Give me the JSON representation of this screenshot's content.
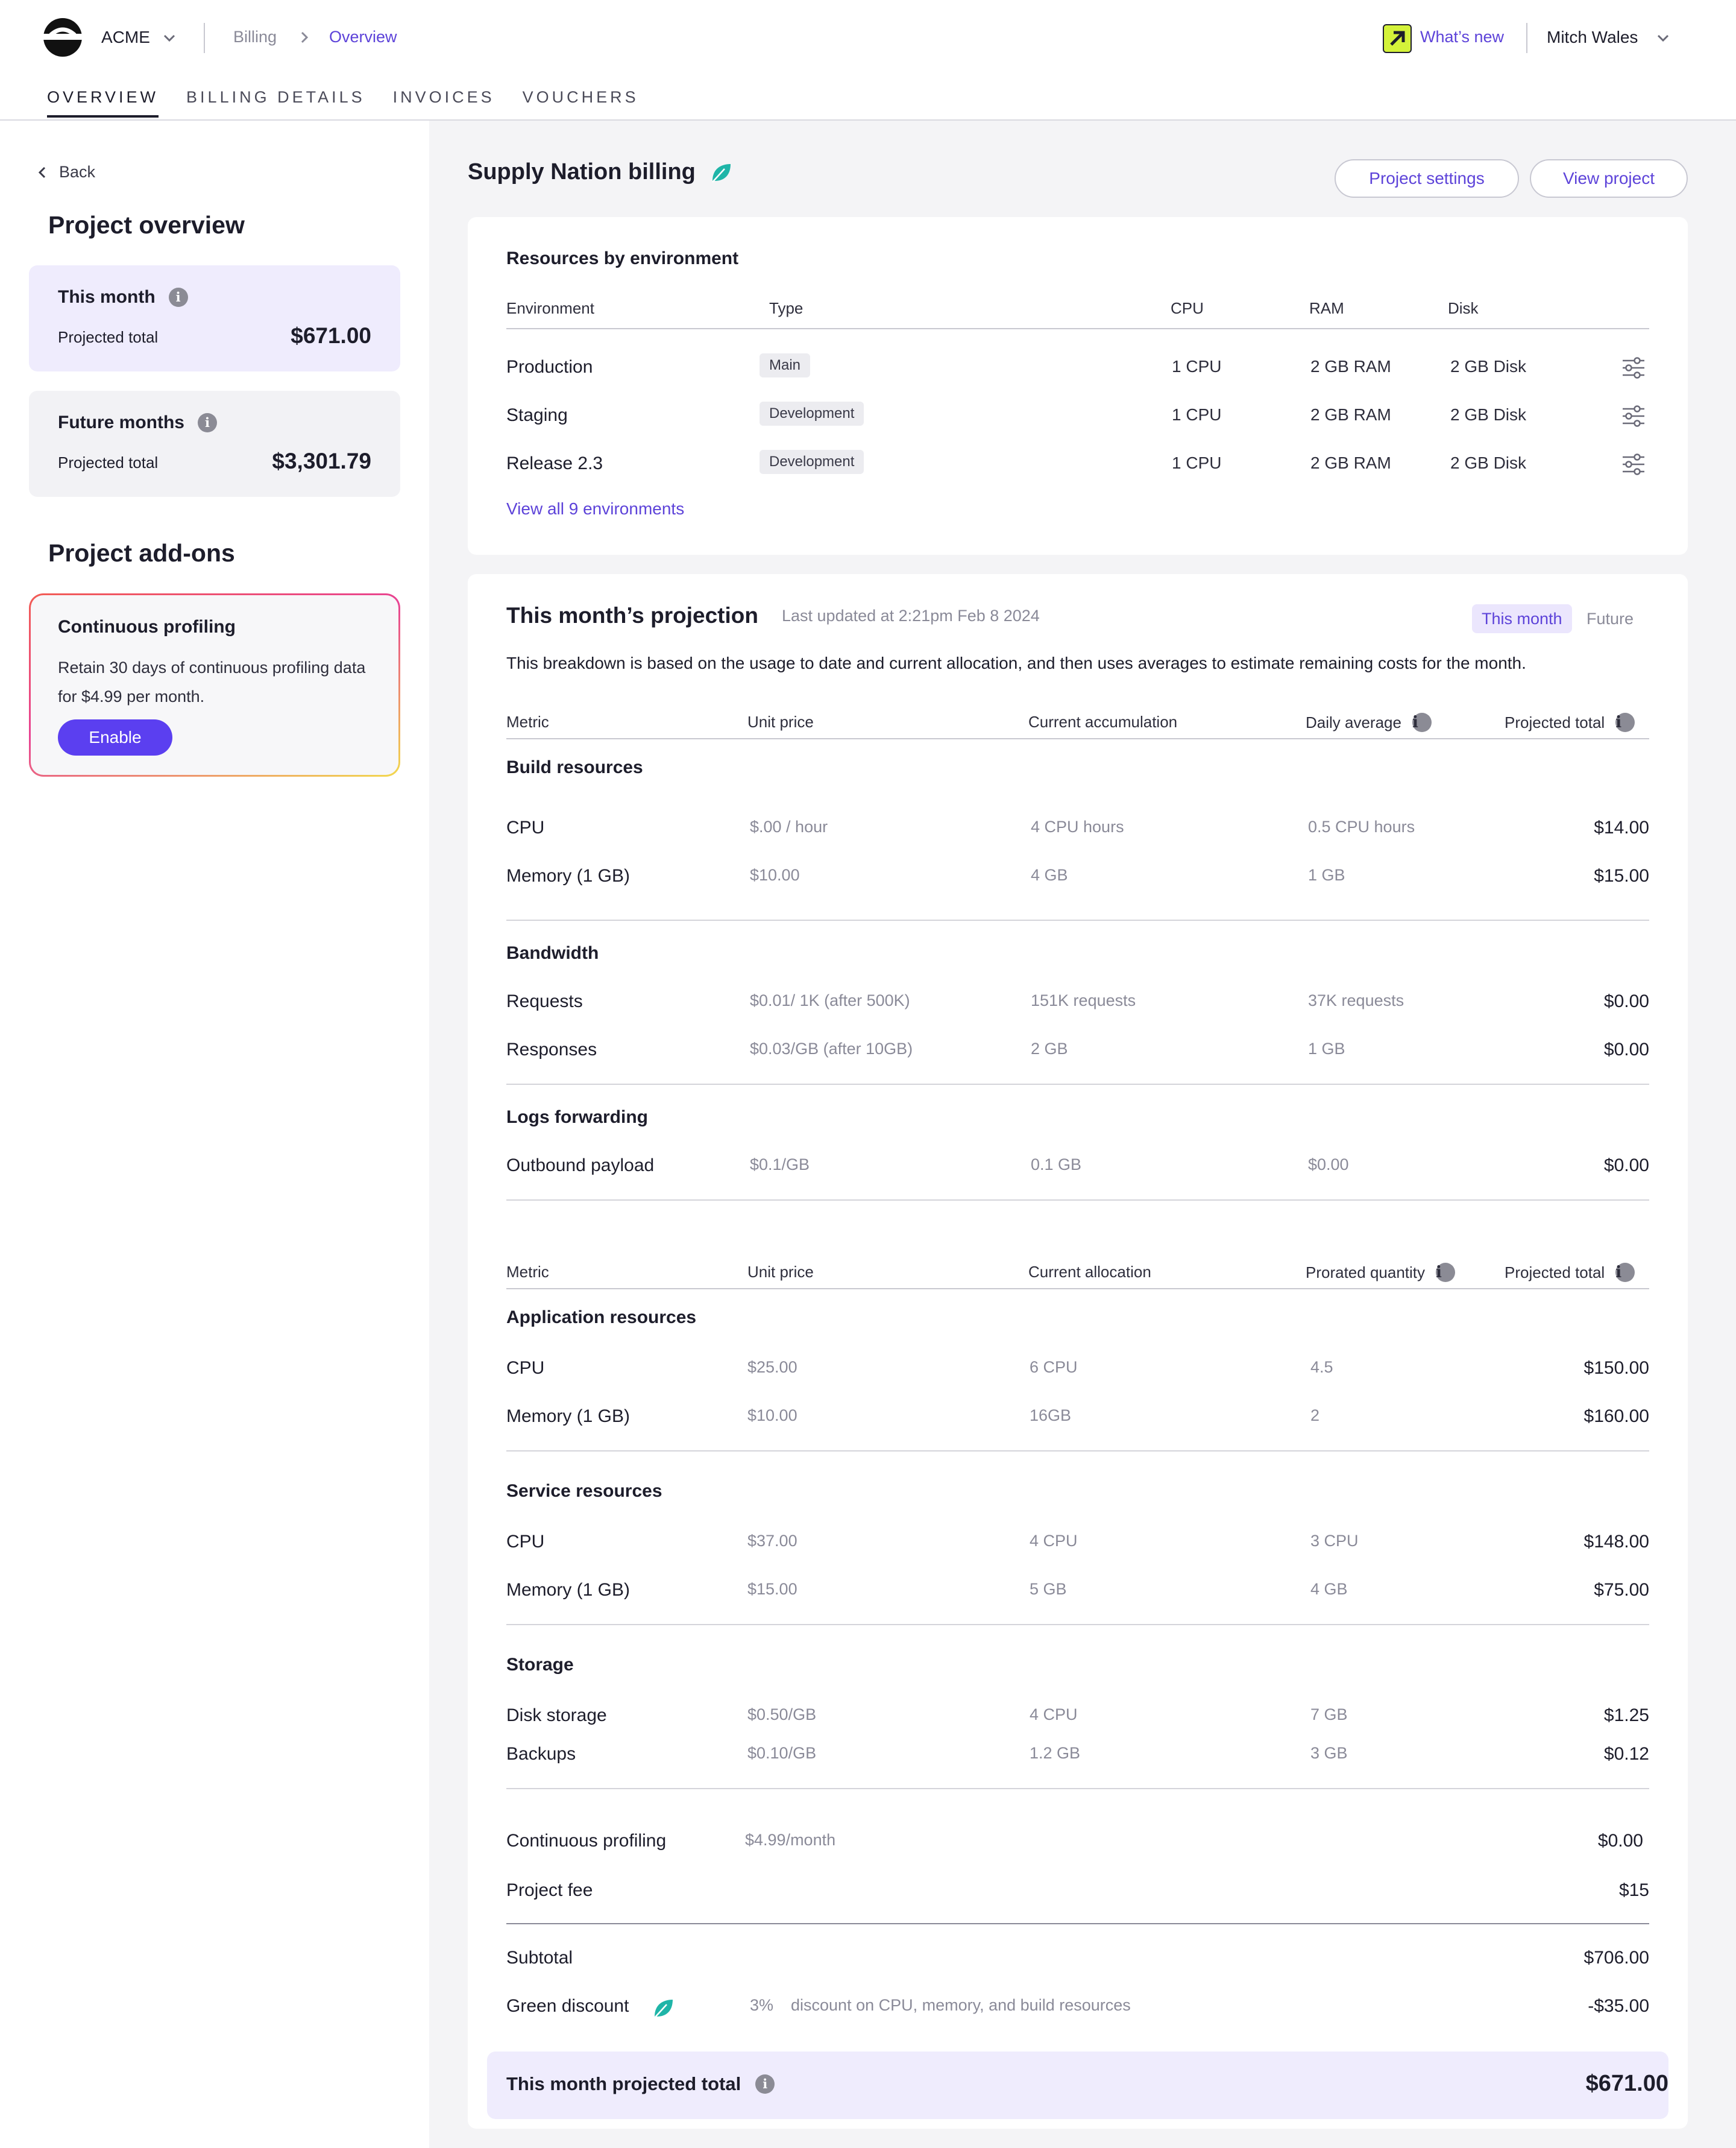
{
  "header": {
    "org_name": "ACME",
    "breadcrumb": [
      "Billing",
      "Overview"
    ],
    "whats_new": "What’s new",
    "user_name": "Mitch Wales",
    "tabs": [
      "OVERVIEW",
      "BILLING DETAILS",
      "INVOICES",
      "VOUCHERS"
    ],
    "active_tab": "OVERVIEW"
  },
  "sidebar": {
    "back_label": "Back",
    "overview_heading": "Project overview",
    "this_month": {
      "title": "This month",
      "label": "Projected total",
      "value": "$671.00"
    },
    "future_months": {
      "title": "Future months",
      "label": "Projected total",
      "value": "$3,301.79"
    },
    "addons_heading": "Project add-ons",
    "addon": {
      "title": "Continuous profiling",
      "description": "Retain 30 days of continuous profiling data for $4.99 per month.",
      "button": "Enable"
    }
  },
  "main": {
    "project_title": "Supply Nation billing",
    "project_settings": "Project settings",
    "view_project": "View project",
    "environments": {
      "title": "Resources by environment",
      "columns": [
        "Environment",
        "Type",
        "CPU",
        "RAM",
        "Disk"
      ],
      "rows": [
        {
          "name": "Production",
          "type": "Main",
          "cpu": "1 CPU",
          "ram": "2 GB RAM",
          "disk": "2 GB Disk"
        },
        {
          "name": "Staging",
          "type": "Development",
          "cpu": "1 CPU",
          "ram": "2 GB RAM",
          "disk": "2 GB Disk"
        },
        {
          "name": "Release 2.3",
          "type": "Development",
          "cpu": "1 CPU",
          "ram": "2 GB RAM",
          "disk": "2 GB Disk"
        }
      ],
      "view_all": "View all 9 environments"
    },
    "projection": {
      "title": "This month’s projection",
      "updated": "Last updated at 2:21pm Feb 8 2024",
      "toggle": [
        "This month",
        "Future"
      ],
      "description": "This breakdown is based on the usage to date and current allocation, and then uses averages to estimate remaining costs for the month.",
      "usage_columns": [
        "Metric",
        "Unit price",
        "Current accumulation",
        "Daily average",
        "Projected total"
      ],
      "usage_sections": [
        {
          "title": "Build resources",
          "rows": [
            [
              "CPU",
              "$.00 / hour",
              "4 CPU hours",
              "0.5 CPU hours",
              "$14.00"
            ],
            [
              "Memory (1 GB)",
              "$10.00",
              "4 GB",
              "1 GB",
              "$15.00"
            ]
          ]
        },
        {
          "title": "Bandwidth",
          "rows": [
            [
              "Requests",
              "$0.01/ 1K (after 500K)",
              "151K requests",
              "37K requests",
              "$0.00"
            ],
            [
              "Responses",
              "$0.03/GB (after 10GB)",
              "2 GB",
              "1 GB",
              "$0.00"
            ]
          ]
        },
        {
          "title": "Logs forwarding",
          "rows": [
            [
              "Outbound payload",
              "$0.1/GB",
              "0.1 GB",
              "$0.00",
              "$0.00"
            ]
          ]
        }
      ],
      "alloc_columns": [
        "Metric",
        "Unit price",
        "Current allocation",
        "Prorated quantity",
        "Projected total"
      ],
      "alloc_sections": [
        {
          "title": "Application resources",
          "rows": [
            [
              "CPU",
              "$25.00",
              "6 CPU",
              "4.5",
              "$150.00"
            ],
            [
              "Memory (1 GB)",
              "$10.00",
              "16GB",
              "2",
              "$160.00"
            ]
          ]
        },
        {
          "title": "Service resources",
          "rows": [
            [
              "CPU",
              "$37.00",
              "4 CPU",
              "3 CPU",
              "$148.00"
            ],
            [
              "Memory (1 GB)",
              "$15.00",
              "5 GB",
              "4 GB",
              "$75.00"
            ]
          ]
        },
        {
          "title": "Storage",
          "rows": [
            [
              "Disk storage",
              "$0.50/GB",
              "4 CPU",
              "7 GB",
              "$1.25"
            ],
            [
              "Backups",
              "$0.10/GB",
              "1.2 GB",
              "3 GB",
              "$0.12"
            ]
          ]
        }
      ],
      "profiling": {
        "label": "Continuous profiling",
        "price": "$4.99/month",
        "value": "$0.00"
      },
      "project_fee": {
        "label": "Project fee",
        "value": "$15"
      },
      "subtotal": {
        "label": "Subtotal",
        "value": "$706.00"
      },
      "green_discount": {
        "label": "Green discount",
        "percent": "3%",
        "detail": "discount on CPU, memory, and build resources",
        "value": "-$35.00"
      },
      "total": {
        "label": "This month projected total",
        "value": "$671.00"
      }
    }
  },
  "colors": {
    "accent": "#5b3ff0",
    "link": "#5d43d9",
    "leaf": "#1fb5a8",
    "highlight": "#efecfd"
  }
}
